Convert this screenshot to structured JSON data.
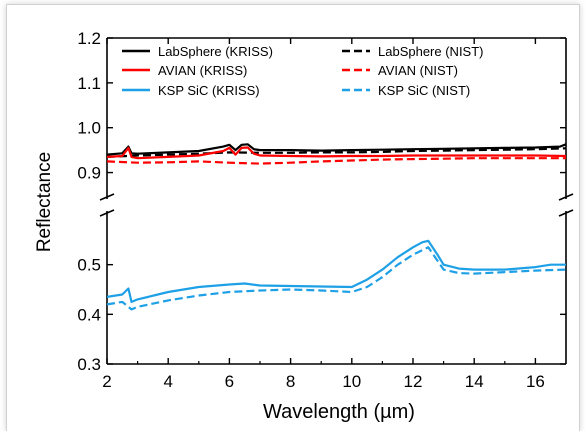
{
  "chart_data": {
    "type": "line",
    "xlabel": "Wavelength (µm)",
    "ylabel": "Reflectance",
    "xlim": [
      2,
      17
    ],
    "axis_break": {
      "lower": [
        0.3,
        0.6
      ],
      "upper": [
        0.85,
        1.2
      ]
    },
    "x_ticks": [
      "2",
      "4",
      "6",
      "8",
      "10",
      "12",
      "14",
      "16"
    ],
    "y_ticks_lower": [
      "0.3",
      "0.4",
      "0.5"
    ],
    "y_ticks_upper": [
      "0.9",
      "1.0",
      "1.1",
      "1.2"
    ],
    "legend_position": "top",
    "series": [
      {
        "name": "LabSphere (KRISS)",
        "color": "#000000",
        "dash": false,
        "x": [
          2,
          2.5,
          2.7,
          2.8,
          3,
          4,
          5,
          5.8,
          6,
          6.2,
          6.4,
          6.6,
          6.8,
          7,
          8,
          9,
          10,
          11,
          12,
          13,
          14,
          15,
          16,
          16.8,
          17
        ],
        "y": [
          0.94,
          0.943,
          0.958,
          0.943,
          0.942,
          0.945,
          0.948,
          0.958,
          0.962,
          0.95,
          0.962,
          0.963,
          0.952,
          0.95,
          0.95,
          0.949,
          0.95,
          0.951,
          0.952,
          0.953,
          0.954,
          0.955,
          0.956,
          0.958,
          0.963
        ]
      },
      {
        "name": "LabSphere (NIST)",
        "color": "#000000",
        "dash": true,
        "x": [
          2,
          3,
          4,
          5,
          6,
          7,
          8,
          9,
          10,
          11,
          12,
          13,
          14,
          15,
          16,
          17
        ],
        "y": [
          0.935,
          0.938,
          0.94,
          0.942,
          0.945,
          0.944,
          0.944,
          0.945,
          0.945,
          0.946,
          0.948,
          0.949,
          0.95,
          0.951,
          0.952,
          0.954
        ]
      },
      {
        "name": "AVIAN (KRISS)",
        "color": "#ff0000",
        "dash": false,
        "x": [
          2,
          2.5,
          2.7,
          2.8,
          3,
          4,
          5,
          5.8,
          6,
          6.2,
          6.4,
          6.6,
          6.8,
          7,
          8,
          9,
          10,
          11,
          12,
          13,
          14,
          15,
          16,
          17
        ],
        "y": [
          0.935,
          0.937,
          0.955,
          0.935,
          0.932,
          0.935,
          0.938,
          0.948,
          0.955,
          0.94,
          0.955,
          0.956,
          0.942,
          0.938,
          0.937,
          0.936,
          0.937,
          0.937,
          0.938,
          0.938,
          0.938,
          0.938,
          0.938,
          0.937
        ]
      },
      {
        "name": "AVIAN (NIST)",
        "color": "#ff0000",
        "dash": true,
        "x": [
          2,
          3,
          4,
          5,
          6,
          7,
          8,
          9,
          10,
          11,
          12,
          13,
          14,
          15,
          16,
          17
        ],
        "y": [
          0.925,
          0.922,
          0.923,
          0.925,
          0.922,
          0.92,
          0.922,
          0.925,
          0.927,
          0.929,
          0.93,
          0.931,
          0.932,
          0.932,
          0.932,
          0.932
        ]
      },
      {
        "name": "KSP SiC (KRISS)",
        "color": "#1ea0e6",
        "dash": false,
        "x": [
          2,
          2.5,
          2.7,
          2.8,
          3,
          4,
          5,
          6,
          6.5,
          7,
          8,
          9,
          10,
          10.5,
          11,
          11.5,
          12,
          12.3,
          12.5,
          12.8,
          13,
          13.5,
          14,
          15,
          16,
          16.5,
          17
        ],
        "y": [
          0.435,
          0.44,
          0.452,
          0.425,
          0.43,
          0.445,
          0.455,
          0.46,
          0.462,
          0.458,
          0.457,
          0.456,
          0.455,
          0.47,
          0.49,
          0.515,
          0.535,
          0.545,
          0.548,
          0.52,
          0.5,
          0.492,
          0.49,
          0.49,
          0.495,
          0.5,
          0.5
        ]
      },
      {
        "name": "KSP SiC (NIST)",
        "color": "#1ea0e6",
        "dash": true,
        "x": [
          2,
          2.5,
          2.8,
          3,
          4,
          5,
          6,
          7,
          8,
          9,
          10,
          10.5,
          11,
          11.5,
          12,
          12.5,
          13,
          13.5,
          14,
          15,
          16,
          17
        ],
        "y": [
          0.42,
          0.425,
          0.41,
          0.415,
          0.428,
          0.438,
          0.445,
          0.448,
          0.45,
          0.448,
          0.445,
          0.455,
          0.475,
          0.5,
          0.52,
          0.535,
          0.49,
          0.483,
          0.482,
          0.485,
          0.488,
          0.49
        ]
      }
    ]
  }
}
